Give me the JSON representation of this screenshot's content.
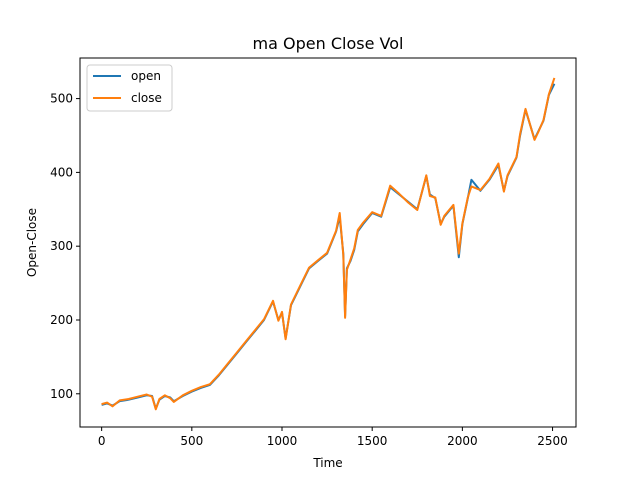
{
  "chart_data": {
    "type": "line",
    "title": "ma Open Close Vol",
    "xlabel": "Time",
    "ylabel": "Open-Close",
    "xlim": [
      -120,
      2630
    ],
    "ylim": [
      55,
      555
    ],
    "xticks": [
      0,
      500,
      1000,
      1500,
      2000,
      2500
    ],
    "yticks": [
      100,
      200,
      300,
      400,
      500
    ],
    "grid": false,
    "legend_position": "top-left",
    "series": [
      {
        "name": "open",
        "color": "#1f77b4",
        "x": [
          0,
          30,
          60,
          100,
          150,
          200,
          250,
          280,
          300,
          320,
          350,
          380,
          400,
          450,
          500,
          550,
          600,
          650,
          700,
          750,
          800,
          850,
          900,
          950,
          980,
          1000,
          1020,
          1050,
          1100,
          1150,
          1200,
          1250,
          1300,
          1320,
          1340,
          1350,
          1360,
          1380,
          1400,
          1420,
          1450,
          1500,
          1550,
          1600,
          1650,
          1700,
          1750,
          1800,
          1820,
          1850,
          1880,
          1900,
          1950,
          1980,
          2000,
          2030,
          2050,
          2100,
          2150,
          2200,
          2230,
          2250,
          2300,
          2320,
          2350,
          2400,
          2420,
          2450,
          2480,
          2510
        ],
        "y": [
          85,
          87,
          84,
          90,
          92,
          95,
          98,
          97,
          80,
          92,
          97,
          95,
          90,
          97,
          103,
          108,
          112,
          125,
          140,
          155,
          170,
          185,
          200,
          225,
          200,
          210,
          175,
          220,
          245,
          270,
          280,
          290,
          320,
          340,
          290,
          205,
          270,
          280,
          295,
          320,
          330,
          345,
          340,
          380,
          370,
          360,
          350,
          395,
          370,
          365,
          330,
          340,
          355,
          285,
          330,
          365,
          390,
          375,
          390,
          410,
          375,
          395,
          420,
          450,
          485,
          445,
          455,
          470,
          505,
          520
        ]
      },
      {
        "name": "close",
        "color": "#ff7f0e",
        "x": [
          0,
          30,
          60,
          100,
          150,
          200,
          250,
          280,
          300,
          320,
          350,
          380,
          400,
          450,
          500,
          550,
          600,
          650,
          700,
          750,
          800,
          850,
          900,
          950,
          980,
          1000,
          1020,
          1050,
          1100,
          1150,
          1200,
          1250,
          1300,
          1320,
          1340,
          1350,
          1360,
          1380,
          1400,
          1420,
          1450,
          1500,
          1550,
          1600,
          1650,
          1700,
          1750,
          1800,
          1820,
          1850,
          1880,
          1900,
          1950,
          1980,
          2000,
          2030,
          2050,
          2100,
          2150,
          2200,
          2230,
          2250,
          2300,
          2320,
          2350,
          2400,
          2420,
          2450,
          2480,
          2510
        ],
        "y": [
          86,
          88,
          83,
          91,
          93,
          96,
          99,
          96,
          79,
          93,
          98,
          94,
          89,
          98,
          104,
          109,
          113,
          126,
          141,
          156,
          171,
          186,
          201,
          226,
          199,
          211,
          174,
          221,
          246,
          271,
          281,
          291,
          321,
          345,
          288,
          203,
          268,
          282,
          297,
          322,
          332,
          346,
          341,
          382,
          371,
          359,
          349,
          396,
          368,
          366,
          329,
          341,
          356,
          290,
          331,
          366,
          381,
          376,
          391,
          412,
          374,
          396,
          421,
          452,
          486,
          444,
          454,
          471,
          506,
          528
        ]
      }
    ]
  }
}
